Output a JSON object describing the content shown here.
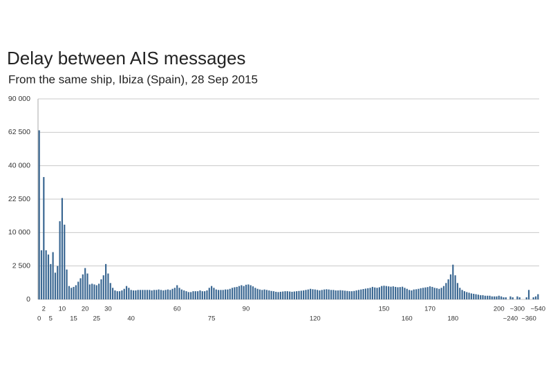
{
  "chart_data": {
    "type": "bar",
    "title": "Delay between AIS messages",
    "subtitle": "From the same ship, Ibiza (Spain), 28 Sep 2015",
    "yscale": "sqrt",
    "ylim": [
      0,
      90000
    ],
    "yticks": [
      0,
      {
        "value": 2500,
        "label": "2 500"
      },
      {
        "value": 10000,
        "label": "10 000"
      },
      {
        "value": 22500,
        "label": "22 500"
      },
      {
        "value": 40000,
        "label": "40 000"
      },
      {
        "value": 62500,
        "label": "62 500"
      },
      {
        "value": 90000,
        "label": "90 000"
      }
    ],
    "grid": true,
    "color": "#3a6792",
    "categories": [
      "0",
      null,
      "2",
      null,
      null,
      "5",
      null,
      null,
      null,
      null,
      "10",
      null,
      null,
      null,
      null,
      "15",
      null,
      null,
      null,
      null,
      "20",
      null,
      null,
      null,
      null,
      "25",
      null,
      null,
      null,
      null,
      "30",
      null,
      null,
      null,
      null,
      null,
      null,
      null,
      null,
      null,
      "40",
      null,
      null,
      null,
      null,
      null,
      null,
      null,
      null,
      null,
      null,
      null,
      null,
      null,
      null,
      null,
      null,
      null,
      null,
      null,
      "60",
      null,
      null,
      null,
      null,
      null,
      null,
      null,
      null,
      null,
      null,
      null,
      null,
      null,
      null,
      "75",
      null,
      null,
      null,
      null,
      null,
      null,
      null,
      null,
      null,
      null,
      null,
      null,
      null,
      null,
      "90",
      null,
      null,
      null,
      null,
      null,
      null,
      null,
      null,
      null,
      null,
      null,
      null,
      null,
      null,
      null,
      null,
      null,
      null,
      null,
      null,
      null,
      null,
      null,
      null,
      null,
      null,
      null,
      null,
      null,
      "120",
      null,
      null,
      null,
      null,
      null,
      null,
      null,
      null,
      null,
      null,
      null,
      null,
      null,
      null,
      null,
      null,
      null,
      null,
      null,
      null,
      null,
      null,
      null,
      null,
      null,
      null,
      null,
      null,
      null,
      "150",
      null,
      null,
      null,
      null,
      null,
      null,
      null,
      null,
      null,
      "160",
      null,
      null,
      null,
      null,
      null,
      null,
      null,
      null,
      null,
      "170",
      null,
      null,
      null,
      null,
      null,
      null,
      null,
      null,
      null,
      "180",
      null,
      null,
      null,
      null,
      null,
      null,
      null,
      null,
      null,
      null,
      null,
      null,
      null,
      null,
      null,
      null,
      null,
      null,
      null,
      "200",
      null,
      null,
      null,
      null,
      "~240",
      null,
      null,
      "~300",
      null,
      null,
      null,
      null,
      "~360",
      null,
      null,
      null,
      "~540"
    ],
    "values": [
      64000,
      5400,
      33500,
      5400,
      4500,
      2800,
      5000,
      1600,
      2500,
      13700,
      23000,
      12500,
      2000,
      400,
      300,
      350,
      450,
      700,
      1000,
      1400,
      2200,
      1500,
      500,
      550,
      500,
      450,
      550,
      900,
      1300,
      2800,
      1500,
      600,
      300,
      180,
      150,
      150,
      180,
      250,
      400,
      300,
      200,
      180,
      180,
      200,
      200,
      200,
      200,
      200,
      200,
      180,
      200,
      200,
      220,
      200,
      180,
      200,
      220,
      200,
      250,
      300,
      450,
      300,
      220,
      180,
      150,
      120,
      120,
      150,
      150,
      150,
      180,
      150,
      150,
      180,
      300,
      400,
      300,
      220,
      200,
      200,
      200,
      220,
      220,
      250,
      300,
      330,
      350,
      400,
      450,
      400,
      480,
      500,
      450,
      380,
      300,
      250,
      220,
      200,
      220,
      200,
      180,
      160,
      150,
      130,
      120,
      130,
      140,
      150,
      150,
      140,
      130,
      140,
      150,
      160,
      170,
      180,
      200,
      220,
      250,
      230,
      220,
      200,
      180,
      200,
      220,
      230,
      220,
      200,
      200,
      180,
      180,
      190,
      180,
      170,
      160,
      150,
      150,
      160,
      180,
      200,
      220,
      240,
      260,
      280,
      300,
      350,
      320,
      300,
      330,
      400,
      420,
      400,
      380,
      360,
      380,
      350,
      330,
      340,
      360,
      300,
      250,
      200,
      180,
      220,
      230,
      250,
      280,
      300,
      320,
      340,
      380,
      350,
      300,
      280,
      250,
      300,
      400,
      600,
      900,
      1400,
      2700,
      1300,
      600,
      300,
      200,
      150,
      120,
      100,
      80,
      70,
      60,
      50,
      40,
      40,
      30,
      30,
      30,
      20,
      20,
      20,
      30,
      20,
      10,
      10,
      0,
      20,
      10,
      0,
      20,
      10,
      0,
      0,
      10,
      200,
      0,
      10,
      20,
      60
    ]
  }
}
